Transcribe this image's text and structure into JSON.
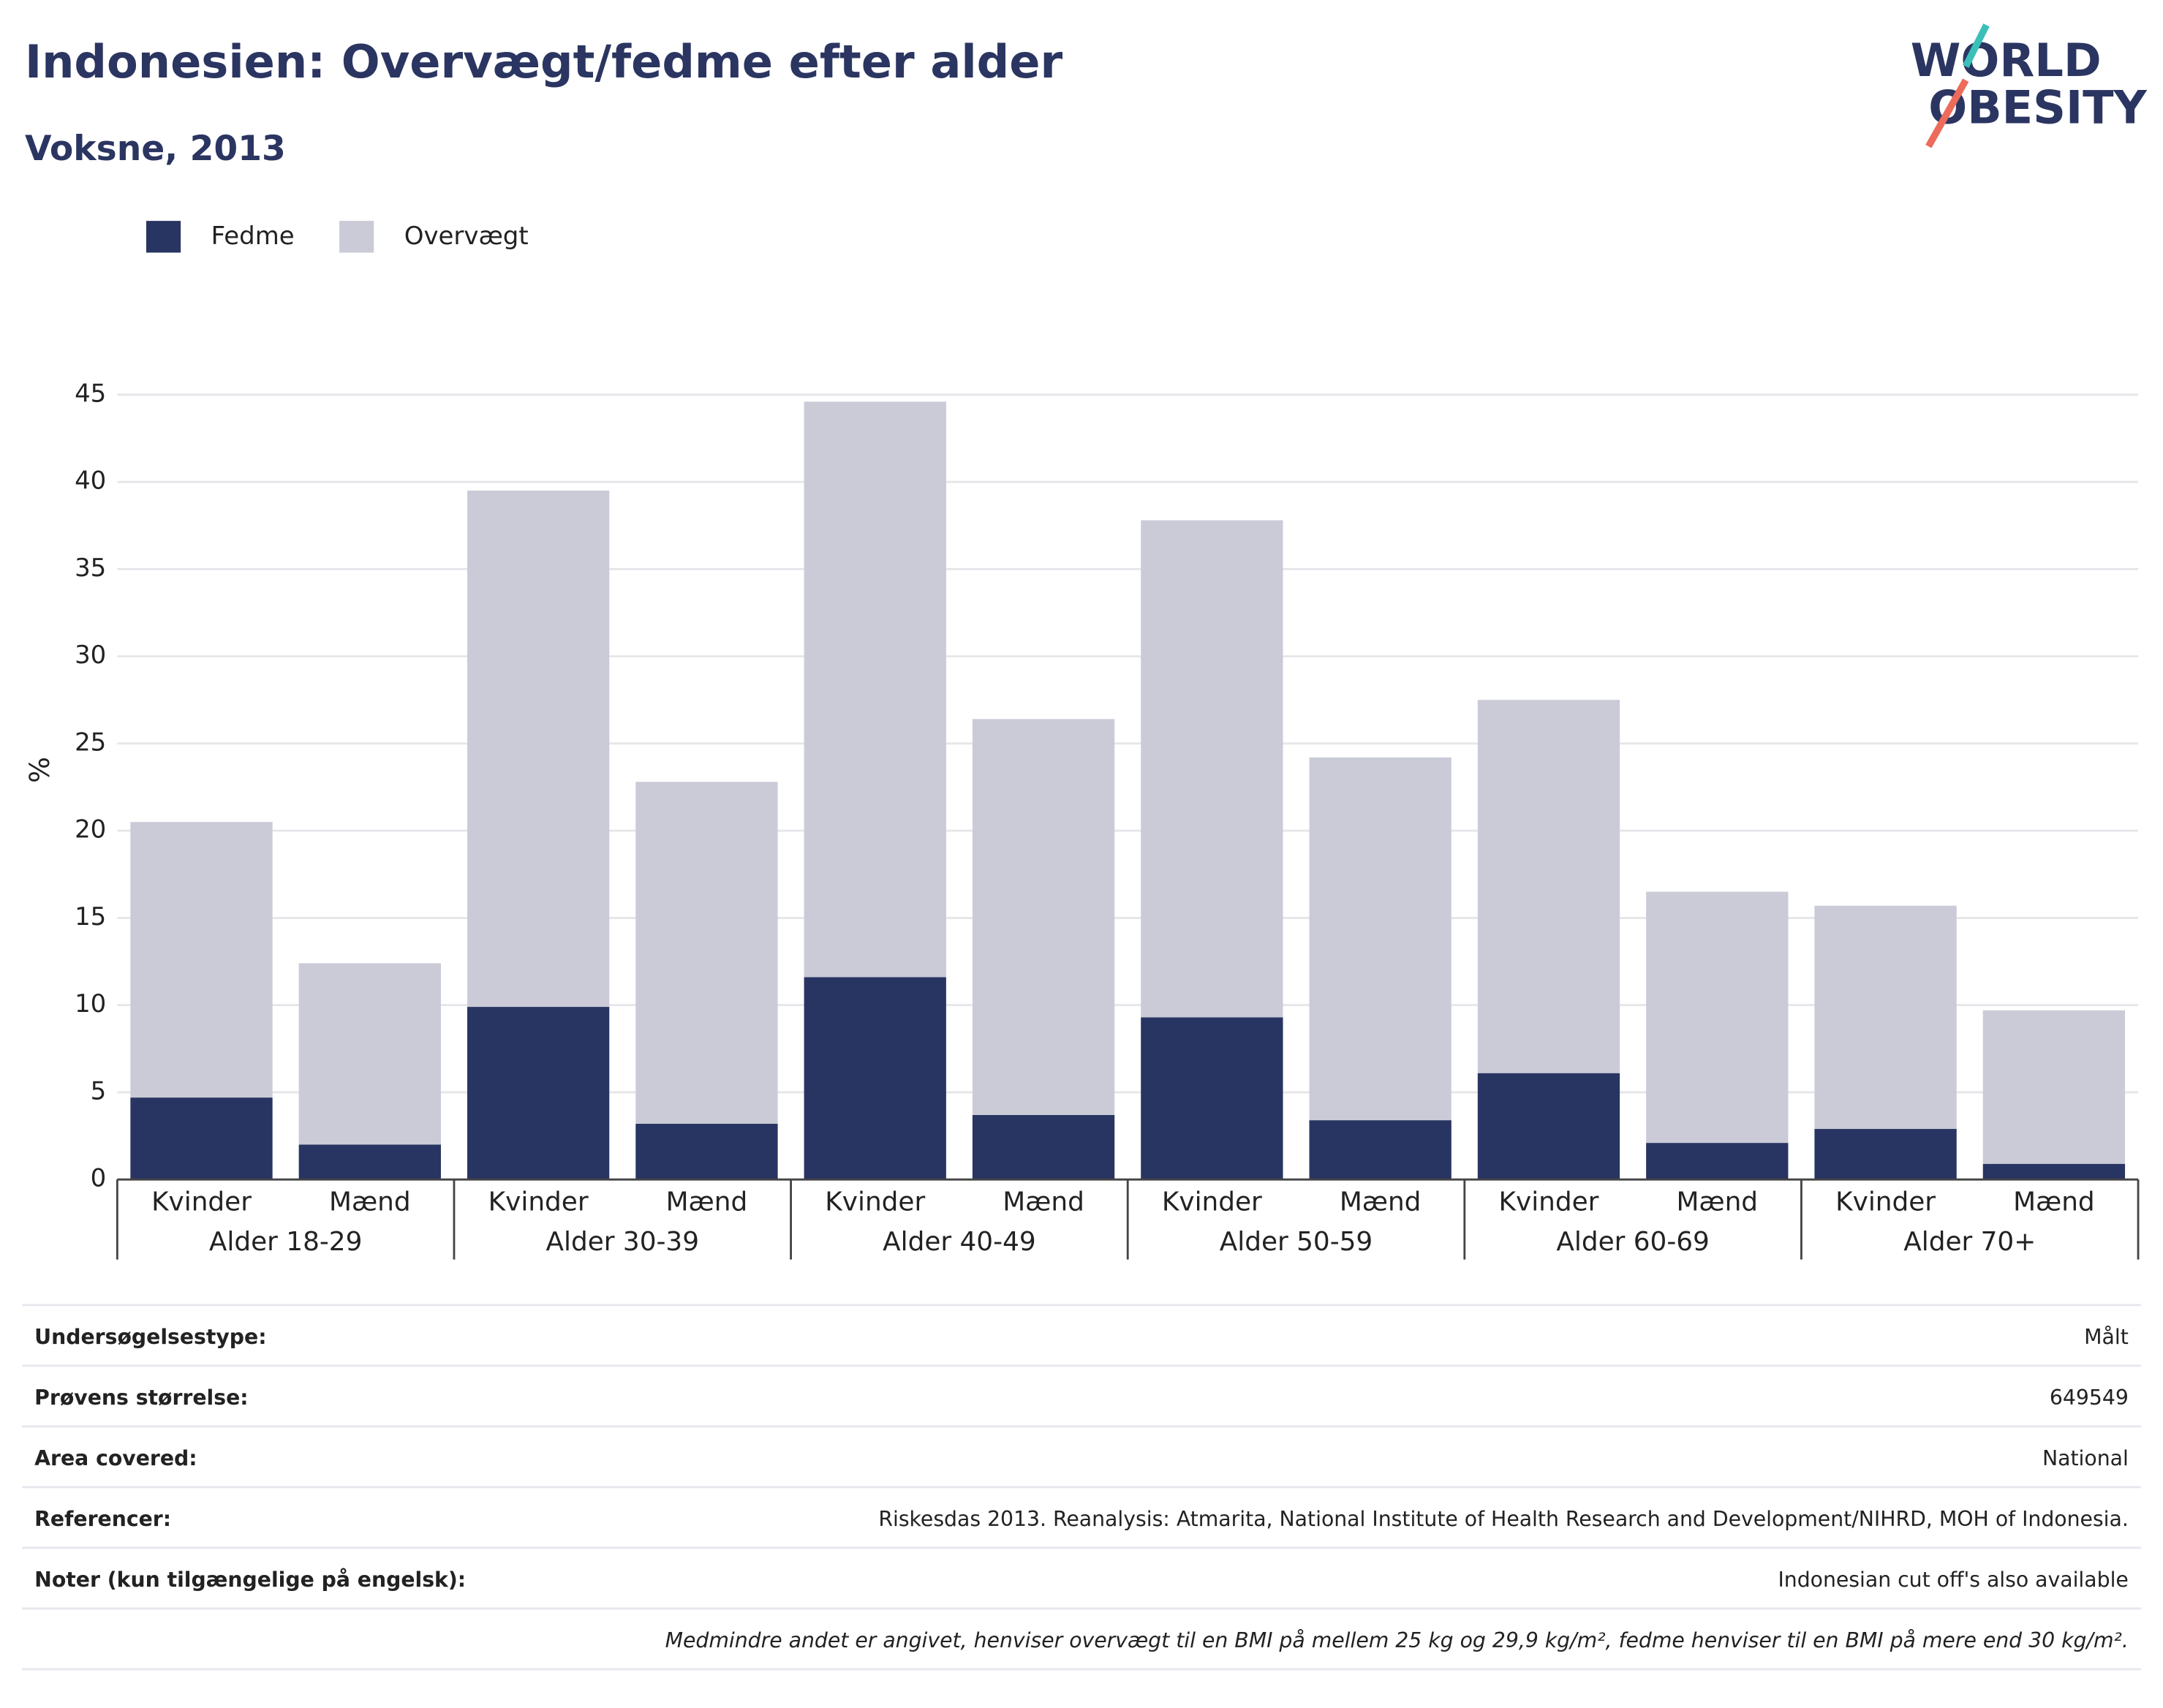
{
  "chart_data": {
    "type": "stacked_bar",
    "title": "Indonesien: Overvægt/fedme efter alder",
    "subtitle": "Voksne, 2013",
    "y_label": "%",
    "categories": [
      "Kvinder",
      "Mænd",
      "Kvinder",
      "Mænd",
      "Kvinder",
      "Mænd",
      "Kvinder",
      "Mænd",
      "Kvinder",
      "Mænd",
      "Kvinder",
      "Mænd"
    ],
    "groups": [
      "Alder 18-29",
      "Alder 30-39",
      "Alder 40-49",
      "Alder 50-59",
      "Alder 60-69",
      "Alder 70+"
    ],
    "series": [
      {
        "name": "Fedme",
        "color": "#283562",
        "values": [
          4.7,
          2.0,
          9.9,
          3.2,
          11.6,
          3.7,
          9.3,
          3.4,
          6.1,
          2.1,
          2.9,
          0.9
        ]
      },
      {
        "name": "Overvægt",
        "color": "#cacbd7",
        "values": [
          15.8,
          10.4,
          29.6,
          19.6,
          33.0,
          22.7,
          28.5,
          20.8,
          21.4,
          14.4,
          12.8,
          8.8
        ]
      }
    ],
    "ylim": [
      0,
      45
    ],
    "yticks": [
      0,
      5,
      10,
      15,
      20,
      25,
      30,
      35,
      40,
      45
    ],
    "grid": true,
    "legend": "top-left"
  },
  "logo": [
    "WORLD",
    "OBESITY"
  ],
  "info": {
    "rows": [
      [
        "Undersøgelsestype:",
        "Målt"
      ],
      [
        "Prøvens størrelse:",
        "649549"
      ],
      [
        "Area covered:",
        "National"
      ],
      [
        "Referencer:",
        "Riskesdas 2013. Reanalysis: Atmarita, National Institute of Health Research and Development/NIHRD, MOH of Indonesia."
      ],
      [
        "Noter (kun tilgængelige på engelsk):",
        "Indonesian cut off's also available"
      ]
    ],
    "footnote": "Medmindre andet er angivet, henviser overvægt til en BMI på mellem 25 kg og 29,9 kg/m², fedme henviser til en BMI på mere end 30 kg/m²."
  }
}
